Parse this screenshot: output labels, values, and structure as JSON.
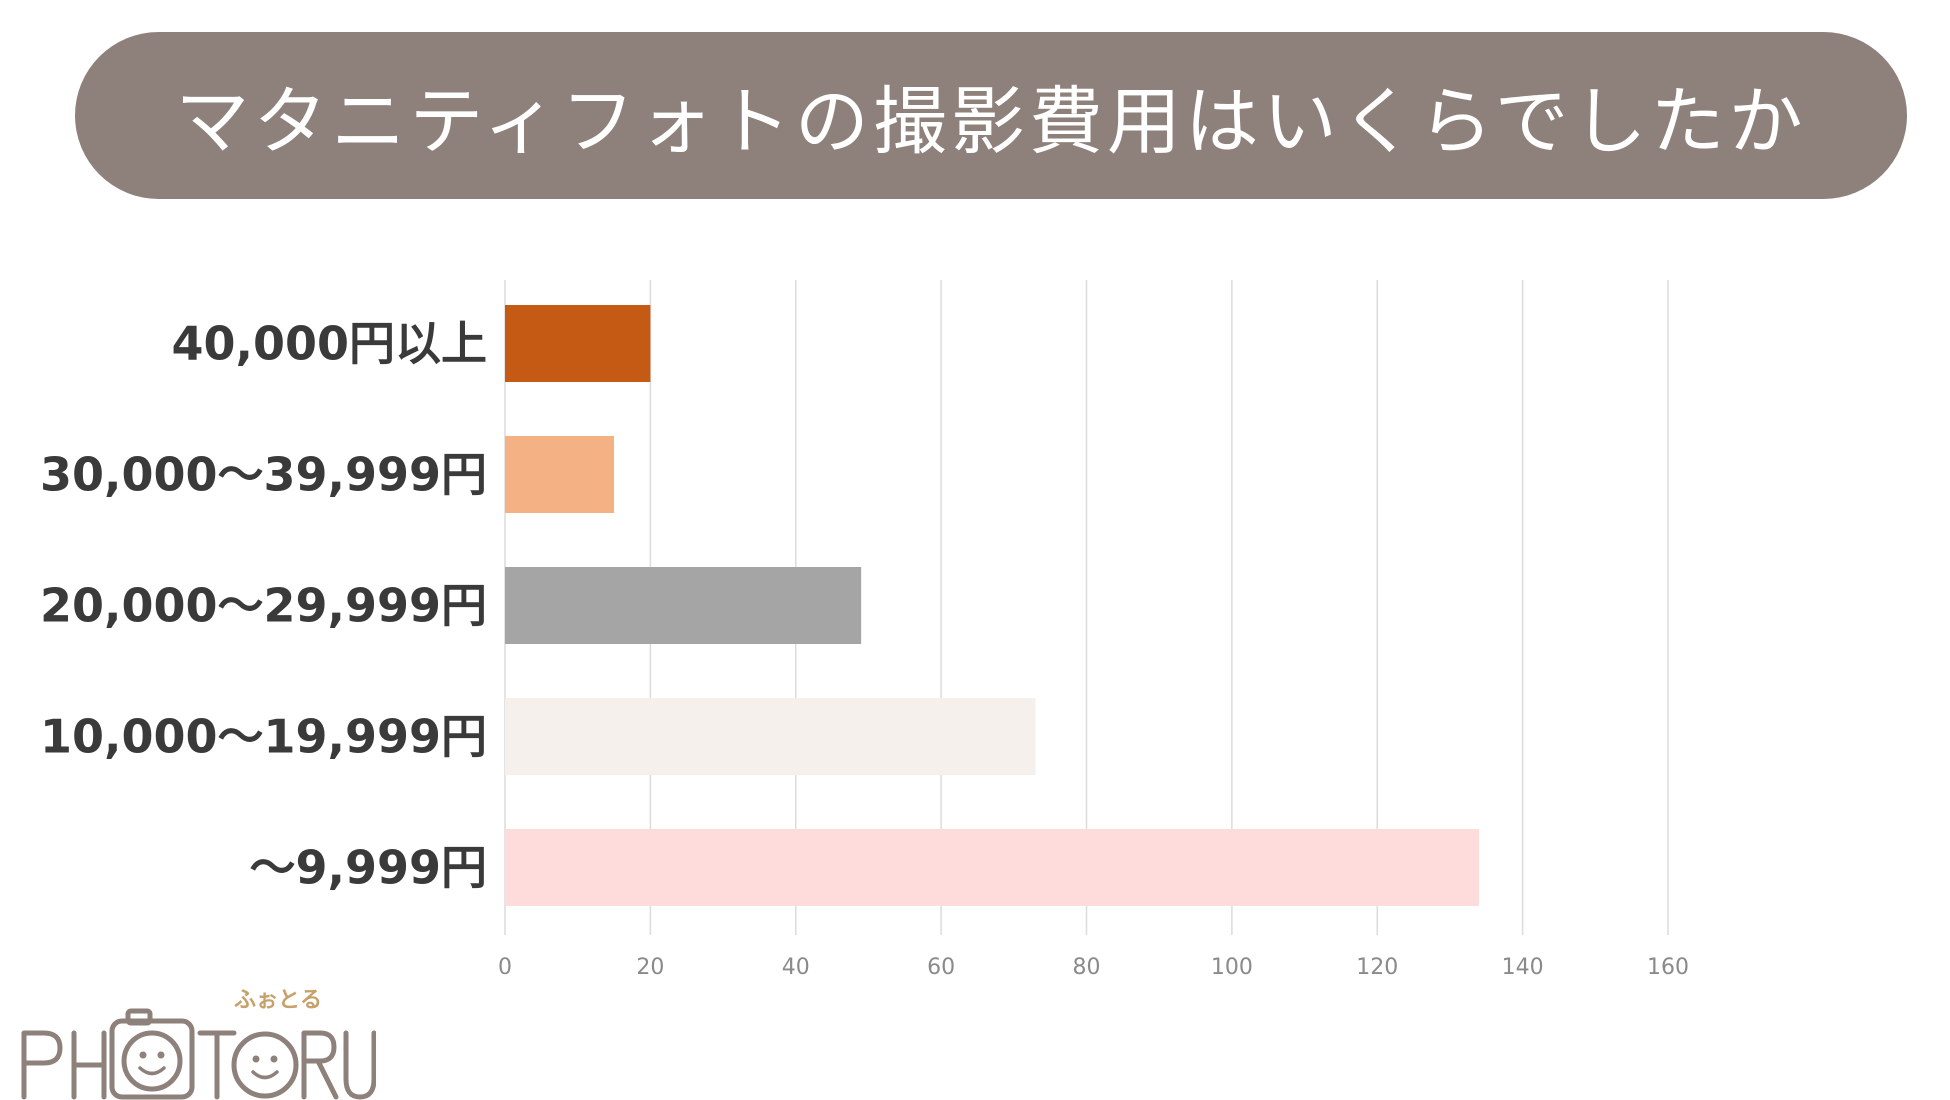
{
  "chart_data": {
    "type": "bar",
    "orientation": "horizontal",
    "title": "マタニティフォトの撮影費用はいくらでしたか",
    "categories": [
      "40,000円以上",
      "30,000〜39,999円",
      "20,000〜29,999円",
      "10,000〜19,999円",
      "〜9,999円"
    ],
    "values": [
      20,
      15,
      49,
      73,
      134
    ],
    "colors": [
      "#c55a14",
      "#f4b183",
      "#a5a5a5",
      "#f5f0ec",
      "#ffdcdc"
    ],
    "xlim": [
      0,
      160
    ],
    "xticks": [
      0,
      20,
      40,
      60,
      80,
      100,
      120,
      140,
      160
    ],
    "grid": true,
    "legend": "none"
  },
  "logo": {
    "text": "PHOTORU",
    "kana": "ふぉとる",
    "color": "#8e807a",
    "accent": "#c8a16a"
  }
}
